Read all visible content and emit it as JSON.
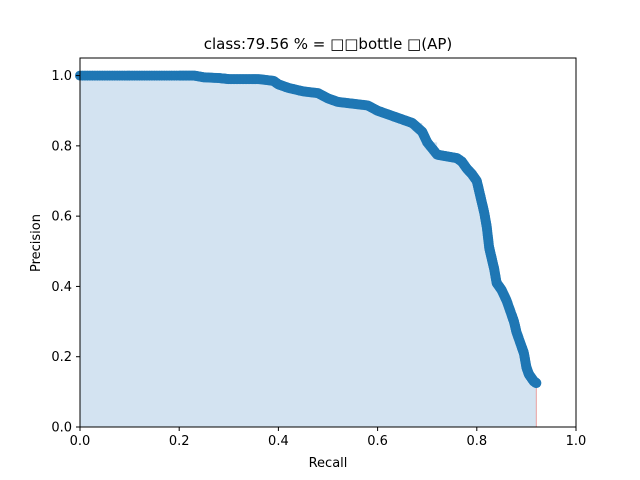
{
  "chart_data": {
    "type": "area",
    "title": "class:79.56 % = □□bottle □(AP)",
    "xlabel": "Recall",
    "ylabel": "Precision",
    "xlim": [
      0,
      1
    ],
    "ylim": [
      0,
      1.05
    ],
    "x_ticks": [
      "0.0",
      "0.2",
      "0.4",
      "0.6",
      "0.8",
      "1.0"
    ],
    "y_ticks": [
      "0.0",
      "0.2",
      "0.4",
      "0.6",
      "0.8",
      "1.0"
    ],
    "grid": false,
    "legend": "none",
    "colors": {
      "marker": "#1f77b4",
      "fill": "#d3e3f1",
      "end_line": "#e8a0a0"
    },
    "series": [
      {
        "x": [
          0.0,
          0.05,
          0.1,
          0.15,
          0.2,
          0.23,
          0.25,
          0.28,
          0.3,
          0.33,
          0.36,
          0.39,
          0.4,
          0.42,
          0.45,
          0.48,
          0.5,
          0.52,
          0.55,
          0.58,
          0.6,
          0.63,
          0.65,
          0.67,
          0.69,
          0.7,
          0.72,
          0.74,
          0.76,
          0.77,
          0.78,
          0.79,
          0.8,
          0.805,
          0.81,
          0.815,
          0.82,
          0.825,
          0.83,
          0.835,
          0.84,
          0.85,
          0.86,
          0.87,
          0.875,
          0.88,
          0.89,
          0.895,
          0.9,
          0.905,
          0.91,
          0.915,
          0.92
        ],
        "y": [
          1.0,
          1.0,
          1.0,
          1.0,
          1.0,
          1.0,
          0.995,
          0.993,
          0.99,
          0.99,
          0.99,
          0.985,
          0.975,
          0.965,
          0.955,
          0.95,
          0.935,
          0.925,
          0.92,
          0.915,
          0.9,
          0.885,
          0.875,
          0.865,
          0.84,
          0.81,
          0.775,
          0.77,
          0.765,
          0.755,
          0.735,
          0.72,
          0.7,
          0.67,
          0.64,
          0.61,
          0.57,
          0.51,
          0.48,
          0.45,
          0.41,
          0.39,
          0.36,
          0.32,
          0.3,
          0.27,
          0.23,
          0.21,
          0.17,
          0.15,
          0.14,
          0.13,
          0.125
        ]
      }
    ]
  }
}
